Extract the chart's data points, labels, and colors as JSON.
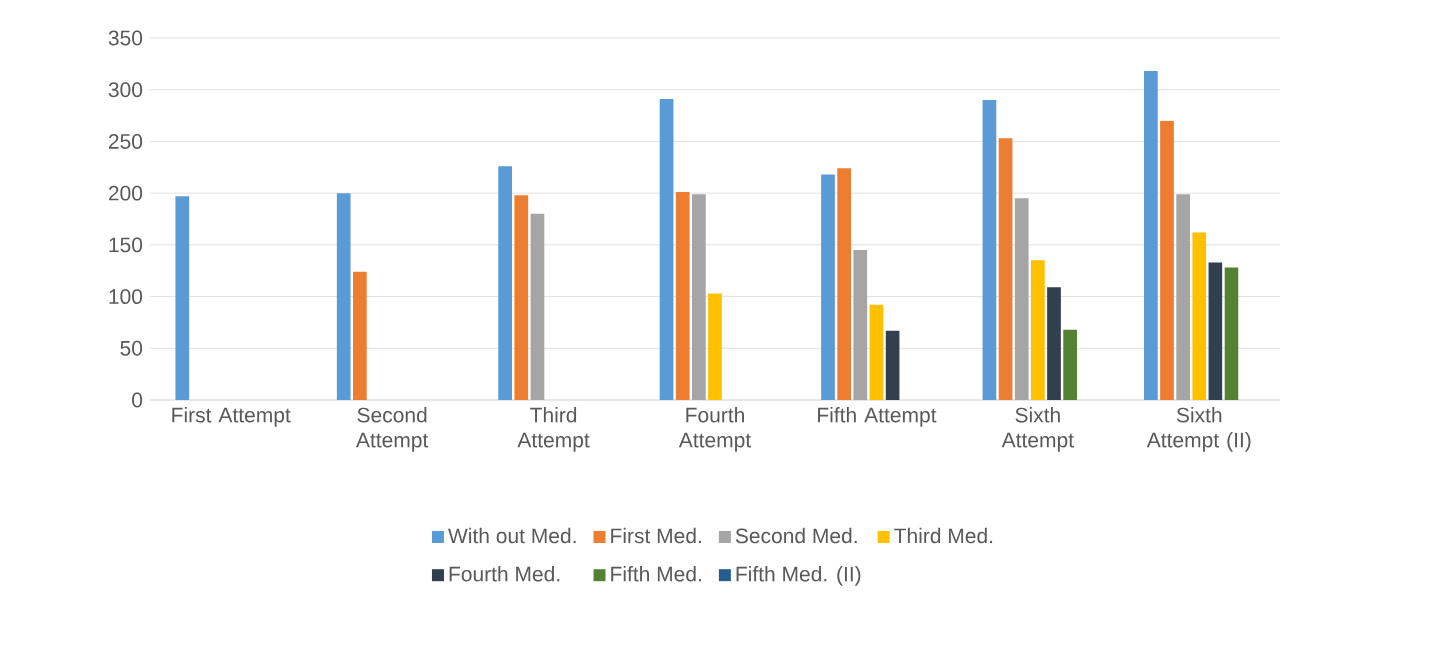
{
  "chart_data": {
    "type": "bar",
    "categories": [
      "First Attempt",
      "Second Attempt",
      "Third Attempt",
      "Fourth Attempt",
      "Fifth Attempt",
      "Sixth Attempt",
      "Sixth Attempt (II)"
    ],
    "series": [
      {
        "name": "With out Med.",
        "color": "#5b9bd5",
        "values": [
          197,
          200,
          226,
          291,
          218,
          290,
          318
        ]
      },
      {
        "name": "First Med.",
        "color": "#ed7d31",
        "values": [
          null,
          124,
          198,
          201,
          224,
          253,
          270
        ]
      },
      {
        "name": "Second Med.",
        "color": "#a5a5a5",
        "values": [
          null,
          null,
          180,
          199,
          145,
          195,
          199
        ]
      },
      {
        "name": "Third Med.",
        "color": "#ffc000",
        "values": [
          null,
          null,
          null,
          103,
          92,
          135,
          162
        ]
      },
      {
        "name": "Fourth Med.",
        "color": "#323f4f",
        "values": [
          null,
          null,
          null,
          null,
          67,
          109,
          133
        ]
      },
      {
        "name": "Fifth Med.",
        "color": "#548235",
        "values": [
          null,
          null,
          null,
          null,
          null,
          68,
          128
        ]
      },
      {
        "name": "Fifth Med. (II)",
        "color": "#255e91",
        "values": [
          null,
          null,
          null,
          null,
          null,
          null,
          null
        ]
      }
    ],
    "ylim": [
      0,
      350
    ],
    "yticks": [
      0,
      50,
      100,
      150,
      200,
      250,
      300,
      350
    ],
    "grid": "y",
    "legend": "bottom"
  }
}
